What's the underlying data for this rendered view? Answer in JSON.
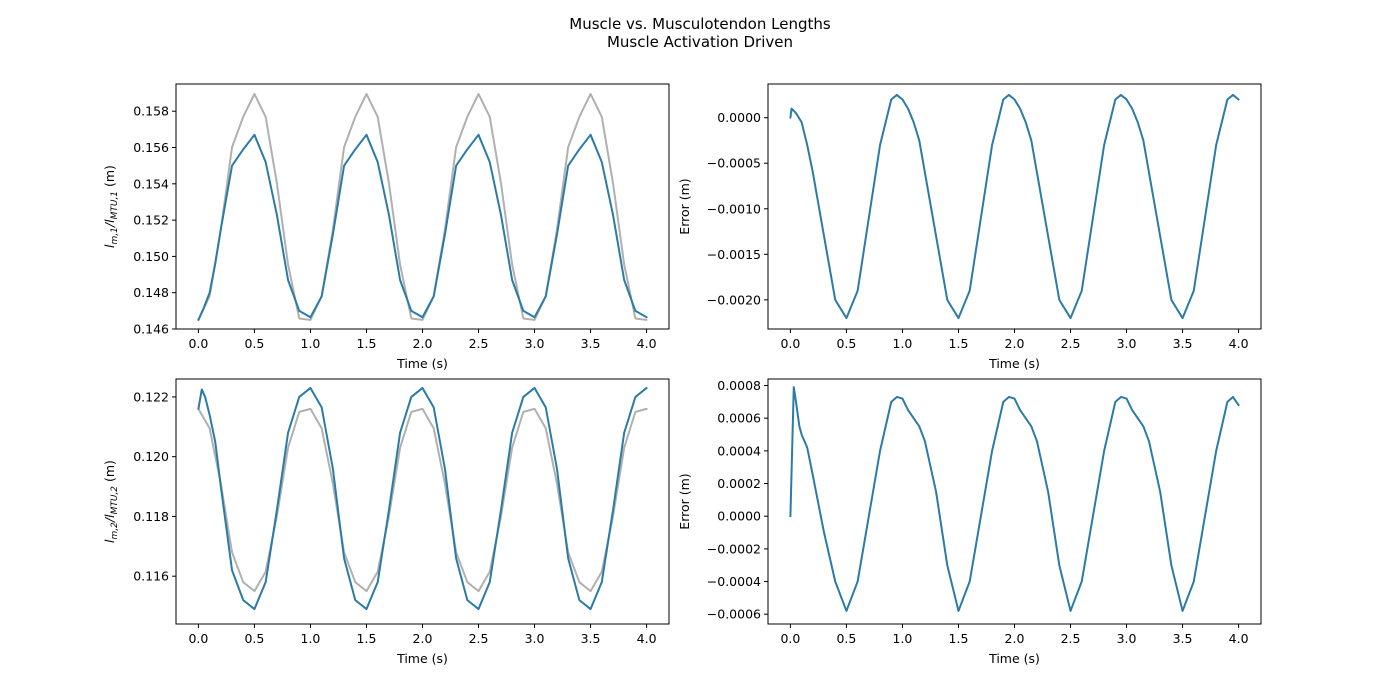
{
  "figure": {
    "title_line1": "Muscle vs. Musculotendon Lengths",
    "title_line2": "Muscle Activation Driven"
  },
  "colors": {
    "muscle_line": "#2b7ba6",
    "musculotendon_line": "#b0b0b0"
  },
  "chart_data": [
    {
      "type": "line",
      "id": "top-left",
      "xlabel": "Time (s)",
      "ylabel": {
        "base": "l",
        "sub1": "m,1",
        "sep": "/l",
        "sub2": "MTU,1",
        "unit": " (m)"
      },
      "xlim": [
        -0.2,
        4.2
      ],
      "ylim": [
        0.146,
        0.1595
      ],
      "xticks": [
        0.0,
        0.5,
        1.0,
        1.5,
        2.0,
        2.5,
        3.0,
        3.5,
        4.0
      ],
      "xtick_labels": [
        "0.0",
        "0.5",
        "1.0",
        "1.5",
        "2.0",
        "2.5",
        "3.0",
        "3.5",
        "4.0"
      ],
      "yticks": [
        0.146,
        0.148,
        0.15,
        0.152,
        0.154,
        0.156,
        0.158
      ],
      "ytick_labels": [
        "0.146",
        "0.148",
        "0.150",
        "0.152",
        "0.154",
        "0.156",
        "0.158"
      ],
      "series": [
        {
          "color_key": "musculotendon_line",
          "x": [
            0,
            0.1,
            0.2,
            0.3,
            0.4,
            0.5,
            0.6,
            0.7,
            0.8,
            0.9,
            1.0,
            1.1,
            1.2,
            1.3,
            1.4,
            1.5,
            1.6,
            1.7,
            1.8,
            1.9,
            2.0,
            2.1,
            2.2,
            2.3,
            2.4,
            2.5,
            2.6,
            2.7,
            2.8,
            2.9,
            3.0,
            3.1,
            3.2,
            3.3,
            3.4,
            3.5,
            3.6,
            3.7,
            3.8,
            3.9,
            4.0
          ],
          "y": [
            0.1465,
            0.14781,
            0.15146,
            0.15602,
            0.15769,
            0.15895,
            0.15769,
            0.15405,
            0.14955,
            0.14658,
            0.1465,
            0.14781,
            0.15146,
            0.15602,
            0.15769,
            0.15895,
            0.15769,
            0.15405,
            0.14955,
            0.14658,
            0.1465,
            0.14781,
            0.15146,
            0.15602,
            0.15769,
            0.15895,
            0.15769,
            0.15405,
            0.14955,
            0.14658,
            0.1465,
            0.14781,
            0.15146,
            0.15602,
            0.15769,
            0.15895,
            0.15769,
            0.15405,
            0.14955,
            0.14658,
            0.1465
          ]
        },
        {
          "color_key": "muscle_line",
          "x": [
            0,
            0.05,
            0.1,
            0.15,
            0.2,
            0.3,
            0.4,
            0.5,
            0.6,
            0.7,
            0.8,
            0.9,
            1.0,
            1.1,
            1.2,
            1.3,
            1.4,
            1.5,
            1.6,
            1.7,
            1.8,
            1.9,
            2.0,
            2.1,
            2.2,
            2.3,
            2.4,
            2.5,
            2.6,
            2.7,
            2.8,
            2.9,
            3.0,
            3.1,
            3.2,
            3.3,
            3.4,
            3.5,
            3.6,
            3.7,
            3.8,
            3.9,
            4.0
          ],
          "y": [
            0.1465,
            0.1472,
            0.148,
            0.1496,
            0.1515,
            0.155,
            0.1559,
            0.1567,
            0.1552,
            0.1523,
            0.1487,
            0.147,
            0.14665,
            0.1478,
            0.1512,
            0.155,
            0.1559,
            0.1567,
            0.1552,
            0.1523,
            0.1487,
            0.147,
            0.14665,
            0.1478,
            0.1512,
            0.155,
            0.1559,
            0.1567,
            0.1552,
            0.1523,
            0.1487,
            0.147,
            0.14665,
            0.1478,
            0.1512,
            0.155,
            0.1559,
            0.1567,
            0.1552,
            0.1523,
            0.1487,
            0.147,
            0.14665
          ]
        }
      ]
    },
    {
      "type": "line",
      "id": "top-right",
      "xlabel": "Time (s)",
      "ylabel_text": "Error (m)",
      "xlim": [
        -0.2,
        4.2
      ],
      "ylim": [
        -0.00232,
        0.00037
      ],
      "xticks": [
        0.0,
        0.5,
        1.0,
        1.5,
        2.0,
        2.5,
        3.0,
        3.5,
        4.0
      ],
      "xtick_labels": [
        "0.0",
        "0.5",
        "1.0",
        "1.5",
        "2.0",
        "2.5",
        "3.0",
        "3.5",
        "4.0"
      ],
      "yticks": [
        0.0,
        -0.0005,
        -0.001,
        -0.0015,
        -0.002
      ],
      "ytick_labels": [
        "0.0000",
        "−0.0005",
        "−0.0010",
        "−0.0015",
        "−0.0020"
      ],
      "series": [
        {
          "color_key": "muscle_line",
          "x": [
            0,
            0.01,
            0.05,
            0.1,
            0.15,
            0.2,
            0.3,
            0.4,
            0.5,
            0.6,
            0.7,
            0.8,
            0.9,
            0.95,
            1.0,
            1.05,
            1.1,
            1.15,
            1.2,
            1.3,
            1.4,
            1.5,
            1.6,
            1.7,
            1.8,
            1.9,
            1.95,
            2.0,
            2.05,
            2.1,
            2.15,
            2.2,
            2.3,
            2.4,
            2.5,
            2.6,
            2.7,
            2.8,
            2.9,
            2.95,
            3.0,
            3.05,
            3.1,
            3.15,
            3.2,
            3.3,
            3.4,
            3.5,
            3.6,
            3.7,
            3.8,
            3.9,
            3.95,
            4.0
          ],
          "y": [
            0.0,
            0.0001,
            5e-05,
            -5e-05,
            -0.0003,
            -0.0006,
            -0.0013,
            -0.002,
            -0.0022,
            -0.0019,
            -0.0011,
            -0.0003,
            0.0002,
            0.00025,
            0.0002,
            0.0001,
            -5e-05,
            -0.00025,
            -0.0006,
            -0.0013,
            -0.002,
            -0.0022,
            -0.0019,
            -0.0011,
            -0.0003,
            0.0002,
            0.00025,
            0.0002,
            0.0001,
            -5e-05,
            -0.00025,
            -0.0006,
            -0.0013,
            -0.002,
            -0.0022,
            -0.0019,
            -0.0011,
            -0.0003,
            0.0002,
            0.00025,
            0.0002,
            0.0001,
            -5e-05,
            -0.00025,
            -0.0006,
            -0.0013,
            -0.002,
            -0.0022,
            -0.0019,
            -0.0011,
            -0.0003,
            0.0002,
            0.00025,
            0.0002
          ]
        }
      ]
    },
    {
      "type": "line",
      "id": "bottom-left",
      "xlabel": "Time (s)",
      "ylabel": {
        "base": "l",
        "sub1": "m,2",
        "sep": "/l",
        "sub2": "MTU,2",
        "unit": " (m)"
      },
      "xlim": [
        -0.2,
        4.2
      ],
      "ylim": [
        0.1144,
        0.1226
      ],
      "xticks": [
        0.0,
        0.5,
        1.0,
        1.5,
        2.0,
        2.5,
        3.0,
        3.5,
        4.0
      ],
      "xtick_labels": [
        "0.0",
        "0.5",
        "1.0",
        "1.5",
        "2.0",
        "2.5",
        "3.0",
        "3.5",
        "4.0"
      ],
      "yticks": [
        0.116,
        0.118,
        0.12,
        0.122
      ],
      "ytick_labels": [
        "0.116",
        "0.118",
        "0.120",
        "0.122"
      ],
      "series": [
        {
          "color_key": "musculotendon_line",
          "x": [
            0,
            0.1,
            0.2,
            0.3,
            0.4,
            0.5,
            0.6,
            0.7,
            0.8,
            0.9,
            1.0,
            1.1,
            1.2,
            1.3,
            1.4,
            1.5,
            1.6,
            1.7,
            1.8,
            1.9,
            2.0,
            2.1,
            2.2,
            2.3,
            2.4,
            2.5,
            2.6,
            2.7,
            2.8,
            2.9,
            3.0,
            3.1,
            3.2,
            3.3,
            3.4,
            3.5,
            3.6,
            3.7,
            3.8,
            3.9,
            4.0
          ],
          "y": [
            0.1216,
            0.12095,
            0.1191,
            0.1168,
            0.1158,
            0.1155,
            0.11615,
            0.118,
            0.1203,
            0.1215,
            0.1216,
            0.12095,
            0.1191,
            0.1168,
            0.1158,
            0.1155,
            0.11615,
            0.118,
            0.1203,
            0.1215,
            0.1216,
            0.12095,
            0.1191,
            0.1168,
            0.1158,
            0.1155,
            0.11615,
            0.118,
            0.1203,
            0.1215,
            0.1216,
            0.12095,
            0.1191,
            0.1168,
            0.1158,
            0.1155,
            0.11615,
            0.118,
            0.1203,
            0.1215,
            0.1216
          ]
        },
        {
          "color_key": "muscle_line",
          "x": [
            0,
            0.03,
            0.06,
            0.1,
            0.15,
            0.2,
            0.3,
            0.4,
            0.5,
            0.6,
            0.7,
            0.8,
            0.9,
            1.0,
            1.1,
            1.2,
            1.3,
            1.4,
            1.5,
            1.6,
            1.7,
            1.8,
            1.9,
            2.0,
            2.1,
            2.2,
            2.3,
            2.4,
            2.5,
            2.6,
            2.7,
            2.8,
            2.9,
            3.0,
            3.1,
            3.2,
            3.3,
            3.4,
            3.5,
            3.6,
            3.7,
            3.8,
            3.9,
            4.0
          ],
          "y": [
            0.1216,
            0.12225,
            0.122,
            0.1214,
            0.1205,
            0.119,
            0.1162,
            0.1152,
            0.1149,
            0.1158,
            0.1182,
            0.1208,
            0.122,
            0.1223,
            0.12165,
            0.1196,
            0.1166,
            0.1152,
            0.1149,
            0.1158,
            0.1182,
            0.1208,
            0.122,
            0.1223,
            0.12165,
            0.1196,
            0.1166,
            0.1152,
            0.1149,
            0.1158,
            0.1182,
            0.1208,
            0.122,
            0.1223,
            0.12165,
            0.1196,
            0.1166,
            0.1152,
            0.1149,
            0.1158,
            0.1182,
            0.1208,
            0.122,
            0.1223
          ]
        }
      ]
    },
    {
      "type": "line",
      "id": "bottom-right",
      "xlabel": "Time (s)",
      "ylabel_text": "Error (m)",
      "xlim": [
        -0.2,
        4.2
      ],
      "ylim": [
        -0.00066,
        0.00084
      ],
      "xticks": [
        0.0,
        0.5,
        1.0,
        1.5,
        2.0,
        2.5,
        3.0,
        3.5,
        4.0
      ],
      "xtick_labels": [
        "0.0",
        "0.5",
        "1.0",
        "1.5",
        "2.0",
        "2.5",
        "3.0",
        "3.5",
        "4.0"
      ],
      "yticks": [
        0.0008,
        0.0006,
        0.0004,
        0.0002,
        0.0,
        -0.0002,
        -0.0004,
        -0.0006
      ],
      "ytick_labels": [
        "0.0008",
        "0.0006",
        "0.0004",
        "0.0002",
        "0.0000",
        "−0.0002",
        "−0.0004",
        "−0.0006"
      ],
      "series": [
        {
          "color_key": "muscle_line",
          "x": [
            0,
            0.03,
            0.05,
            0.08,
            0.1,
            0.15,
            0.2,
            0.3,
            0.4,
            0.5,
            0.6,
            0.7,
            0.8,
            0.9,
            0.95,
            1.0,
            1.05,
            1.1,
            1.15,
            1.2,
            1.3,
            1.4,
            1.5,
            1.6,
            1.7,
            1.8,
            1.9,
            1.95,
            2.0,
            2.05,
            2.1,
            2.15,
            2.2,
            2.3,
            2.4,
            2.5,
            2.6,
            2.7,
            2.8,
            2.9,
            2.95,
            3.0,
            3.05,
            3.1,
            3.15,
            3.2,
            3.3,
            3.4,
            3.5,
            3.6,
            3.7,
            3.8,
            3.9,
            3.95,
            4.0
          ],
          "y": [
            0.0,
            0.00079,
            0.0007,
            0.00055,
            0.0005,
            0.00042,
            0.00025,
            -0.0001,
            -0.0004,
            -0.00058,
            -0.0004,
            0.0,
            0.0004,
            0.0007,
            0.00073,
            0.00072,
            0.00065,
            0.0006,
            0.00055,
            0.00046,
            0.00015,
            -0.0003,
            -0.00058,
            -0.0004,
            0.0,
            0.0004,
            0.0007,
            0.00073,
            0.00072,
            0.00065,
            0.0006,
            0.00055,
            0.00046,
            0.00015,
            -0.0003,
            -0.00058,
            -0.0004,
            0.0,
            0.0004,
            0.0007,
            0.00073,
            0.00072,
            0.00065,
            0.0006,
            0.00055,
            0.00046,
            0.00015,
            -0.0003,
            -0.00058,
            -0.0004,
            0.0,
            0.0004,
            0.0007,
            0.00073,
            0.00068
          ]
        }
      ]
    }
  ]
}
